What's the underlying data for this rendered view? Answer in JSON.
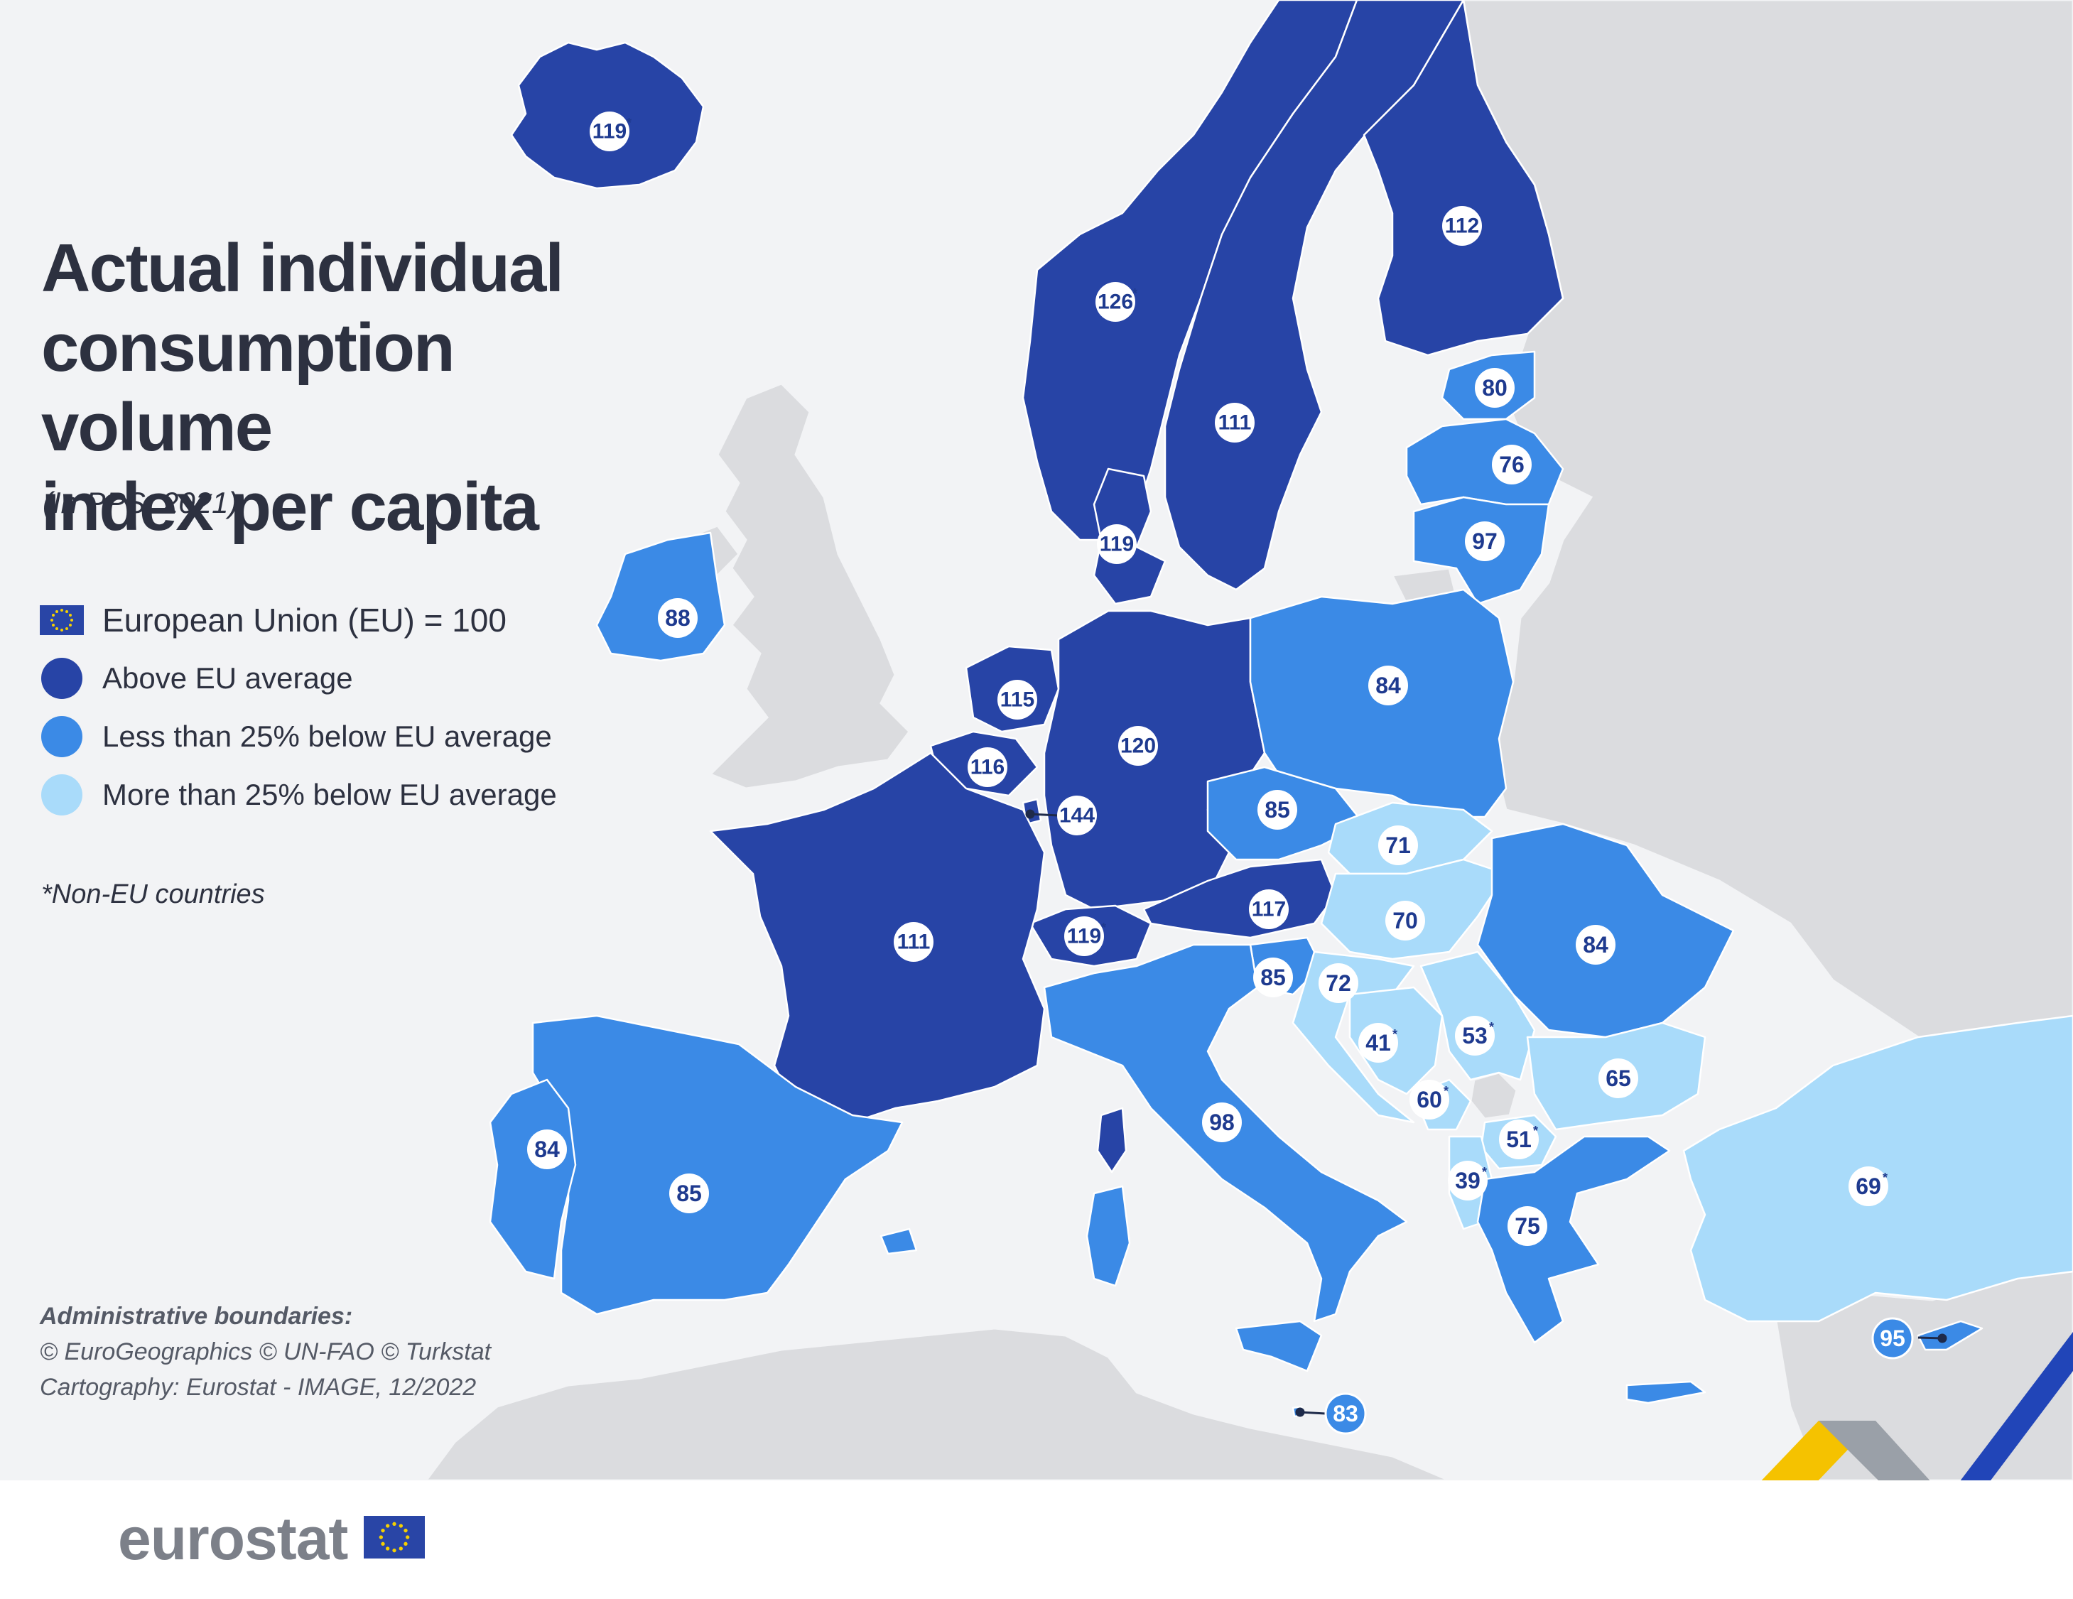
{
  "title": {
    "line1": "Actual individual",
    "line2": "consumption volume",
    "line3": "index per capita"
  },
  "subtitle": "(In PPS, 2021)",
  "legend": {
    "eu_label": "European Union (EU) = 100",
    "items": [
      {
        "label": "Above EU average",
        "color": "#2744a6"
      },
      {
        "label": "Less than 25% below EU average",
        "color": "#3b8ae6"
      },
      {
        "label": "More than 25% below EU average",
        "color": "#a9dbfa"
      }
    ]
  },
  "note": "*Non-EU countries",
  "credits": {
    "heading": "Administrative boundaries:",
    "line1": "© EuroGeographics  © UN-FAO © Turkstat",
    "line2": "Cartography: Eurostat - IMAGE, 12/2022"
  },
  "footer": {
    "logo_text": "eurostat"
  },
  "colors": {
    "above": "#2744a6",
    "less25": "#3b8ae6",
    "more25": "#a9dbfa",
    "background": "#f2f3f5",
    "non_covered_land": "#dbdcdf",
    "label_text": "#1e3a8f"
  },
  "countries": [
    {
      "name": "Iceland",
      "value": "119",
      "non_eu": true,
      "category": "above"
    },
    {
      "name": "Norway",
      "value": "126",
      "non_eu": true,
      "category": "above"
    },
    {
      "name": "Sweden",
      "value": "111",
      "non_eu": false,
      "category": "above"
    },
    {
      "name": "Finland",
      "value": "112",
      "non_eu": false,
      "category": "above"
    },
    {
      "name": "Estonia",
      "value": "80",
      "non_eu": false,
      "category": "less25"
    },
    {
      "name": "Latvia",
      "value": "76",
      "non_eu": false,
      "category": "less25"
    },
    {
      "name": "Lithuania",
      "value": "97",
      "non_eu": false,
      "category": "less25"
    },
    {
      "name": "Denmark",
      "value": "119",
      "non_eu": false,
      "category": "above"
    },
    {
      "name": "Ireland",
      "value": "88",
      "non_eu": false,
      "category": "less25"
    },
    {
      "name": "Netherlands",
      "value": "115",
      "non_eu": false,
      "category": "above"
    },
    {
      "name": "Belgium",
      "value": "116",
      "non_eu": false,
      "category": "above"
    },
    {
      "name": "Luxembourg",
      "value": "144",
      "non_eu": false,
      "category": "above"
    },
    {
      "name": "Germany",
      "value": "120",
      "non_eu": false,
      "category": "above"
    },
    {
      "name": "Poland",
      "value": "84",
      "non_eu": false,
      "category": "less25"
    },
    {
      "name": "Czechia",
      "value": "85",
      "non_eu": false,
      "category": "less25"
    },
    {
      "name": "Slovakia",
      "value": "71",
      "non_eu": false,
      "category": "more25"
    },
    {
      "name": "Austria",
      "value": "117",
      "non_eu": false,
      "category": "above"
    },
    {
      "name": "Switzerland",
      "value": "119",
      "non_eu": true,
      "category": "above"
    },
    {
      "name": "France",
      "value": "111",
      "non_eu": false,
      "category": "above"
    },
    {
      "name": "Hungary",
      "value": "70",
      "non_eu": false,
      "category": "more25"
    },
    {
      "name": "Romania",
      "value": "84",
      "non_eu": false,
      "category": "less25"
    },
    {
      "name": "Slovenia",
      "value": "85",
      "non_eu": false,
      "category": "less25"
    },
    {
      "name": "Croatia",
      "value": "72",
      "non_eu": false,
      "category": "more25"
    },
    {
      "name": "Bosnia and Herzegovina",
      "value": "41",
      "non_eu": true,
      "category": "more25"
    },
    {
      "name": "Serbia",
      "value": "53",
      "non_eu": true,
      "category": "more25"
    },
    {
      "name": "Bulgaria",
      "value": "65",
      "non_eu": false,
      "category": "more25"
    },
    {
      "name": "Montenegro",
      "value": "60",
      "non_eu": true,
      "category": "more25"
    },
    {
      "name": "North Macedonia",
      "value": "51",
      "non_eu": true,
      "category": "more25"
    },
    {
      "name": "Albania",
      "value": "39",
      "non_eu": true,
      "category": "more25"
    },
    {
      "name": "Greece",
      "value": "75",
      "non_eu": false,
      "category": "less25"
    },
    {
      "name": "Türkiye",
      "value": "69",
      "non_eu": true,
      "category": "more25"
    },
    {
      "name": "Italy",
      "value": "98",
      "non_eu": false,
      "category": "less25"
    },
    {
      "name": "Spain",
      "value": "85",
      "non_eu": false,
      "category": "less25"
    },
    {
      "name": "Portugal",
      "value": "84",
      "non_eu": false,
      "category": "less25"
    },
    {
      "name": "Malta",
      "value": "83",
      "non_eu": false,
      "category": "less25"
    },
    {
      "name": "Cyprus",
      "value": "95",
      "non_eu": false,
      "category": "less25"
    }
  ]
}
